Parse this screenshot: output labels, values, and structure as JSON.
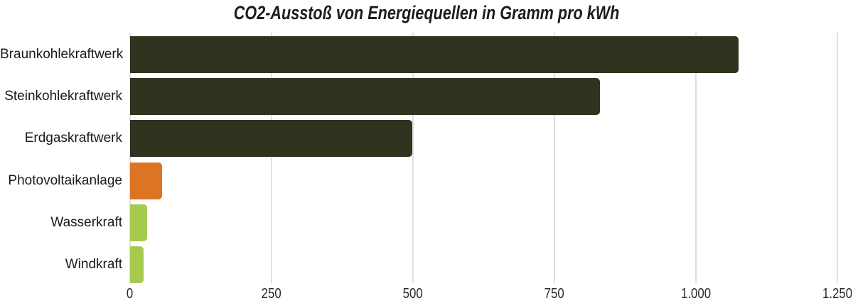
{
  "title": "CO2-Ausstoß von Energiequellen in Gramm pro kWh",
  "chart_data": {
    "type": "bar",
    "orientation": "horizontal",
    "title": "CO2-Ausstoß von Energiequellen in Gramm pro kWh",
    "xlabel": "",
    "ylabel": "",
    "unit": "Gramm CO2 pro kWh",
    "categories": [
      "Braunkohlekraftwerk",
      "Steinkohlekraftwerk",
      "Erdgaskraftwerk",
      "Photovoltaikanlage",
      "Wasserkraft",
      "Windkraft"
    ],
    "values": [
      1075,
      830,
      499,
      56,
      30,
      24
    ],
    "bar_colors": [
      "#30331d",
      "#30331d",
      "#30331d",
      "#dd7424",
      "#a5ca4d",
      "#a5ca4d"
    ],
    "xlim": [
      0,
      1250
    ],
    "xticks": [
      0,
      250,
      500,
      750,
      1000,
      1250
    ],
    "xtick_labels": [
      "0",
      "250",
      "500",
      "750",
      "1.000",
      "1.250"
    ],
    "grid": "vertical-only",
    "legend_position": "none"
  },
  "colors": {
    "fossil_bar": "#30331d",
    "solar_bar": "#dd7424",
    "renewable_bar": "#a5ca4d",
    "gridline": "#dfdfdf",
    "title_text": "#1c1c1c",
    "label_text": "#1a1a1a",
    "background": "#ffffff"
  }
}
